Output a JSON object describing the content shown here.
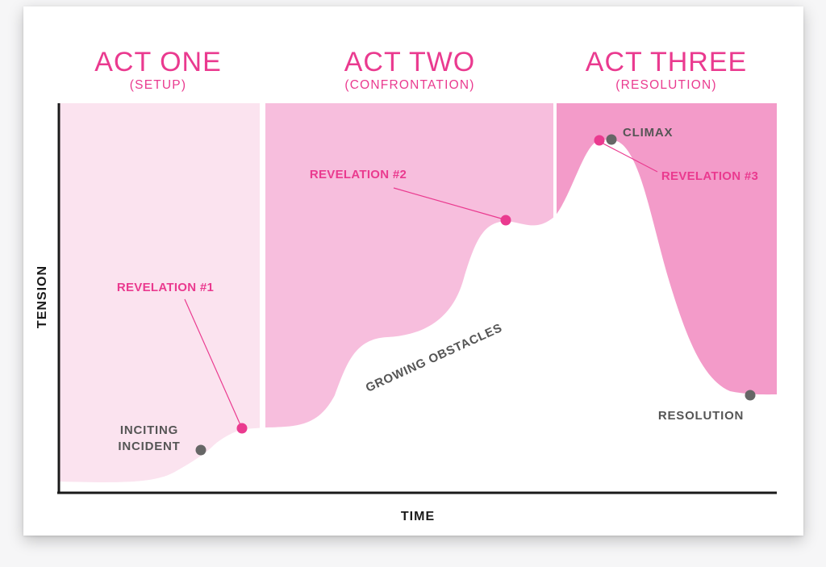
{
  "acts": [
    {
      "title": "ACT ONE",
      "subtitle": "(SETUP)",
      "color": "#fbe3ef"
    },
    {
      "title": "ACT TWO",
      "subtitle": "(CONFRONTATION)",
      "color": "#f7bedd"
    },
    {
      "title": "ACT THREE",
      "subtitle": "(RESOLUTION)",
      "color": "#f39bc9"
    }
  ],
  "axes": {
    "x_label": "TIME",
    "y_label": "TENSION"
  },
  "points": {
    "inciting_incident": {
      "line1": "INCITING",
      "line2": "INCIDENT"
    },
    "revelation_1": "REVELATION #1",
    "revelation_2": "REVELATION #2",
    "revelation_3": "REVELATION #3",
    "climax": "CLIMAX",
    "resolution": "RESOLUTION"
  },
  "curve_label": "GROWING OBSTACLES",
  "colors": {
    "accent": "#ea3a8f",
    "marker_gray": "#666666",
    "axis": "#1a1a1a",
    "text_gray": "#555555"
  }
}
